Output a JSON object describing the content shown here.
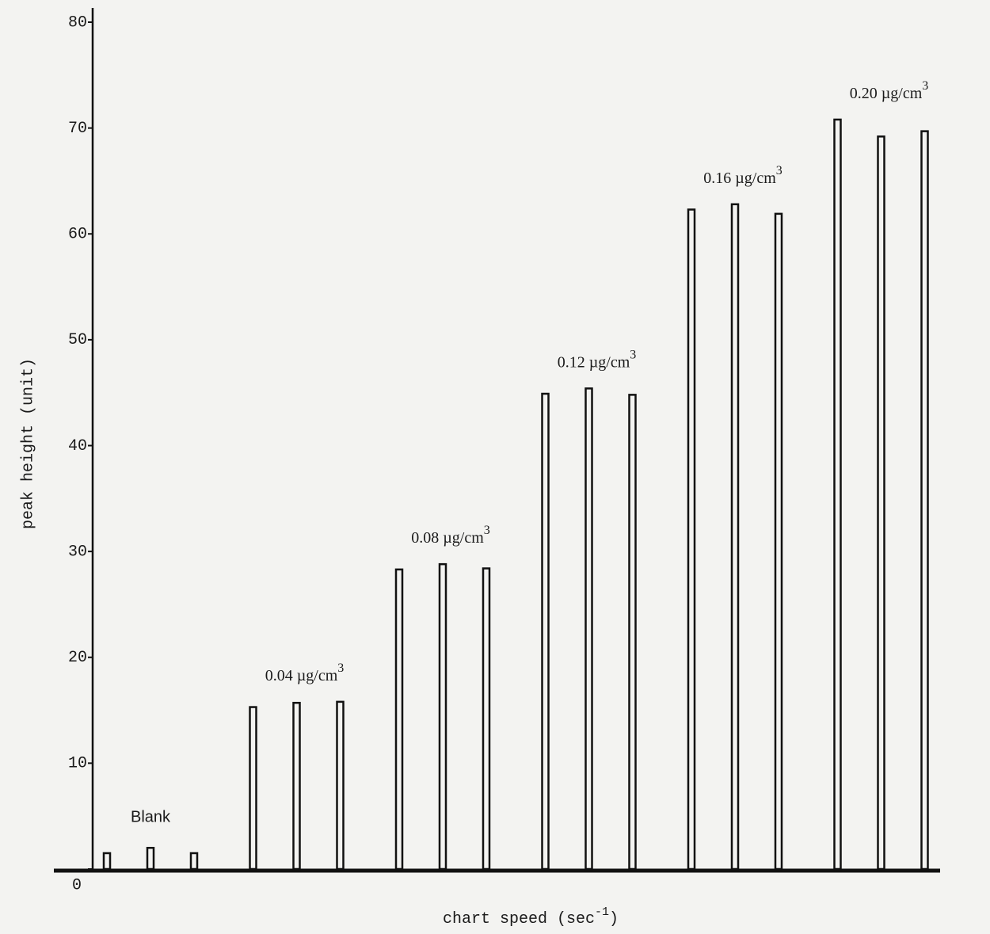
{
  "chart_data": {
    "type": "peak",
    "y_label": "peak height (unit)",
    "x_label": [
      "chart speed (sec",
      "-1",
      ")"
    ],
    "categories": [
      null,
      null,
      null,
      null,
      null,
      null,
      null,
      null,
      null,
      null,
      null,
      null,
      null,
      null,
      null,
      null,
      null,
      null
    ],
    "values": [
      1.5,
      2,
      1.5,
      15.3,
      15.7,
      15.8,
      28.3,
      28.8,
      28.4,
      44.9,
      45.4,
      44.8,
      62.3,
      62.8,
      61.9,
      70.8,
      69.2,
      69.7
    ],
    "color": "#111111",
    "annotations": [
      {
        "text": "Blank"
      },
      {
        "text": "0.04 µg/cm",
        "sup": "3"
      },
      {
        "text": "0.08 µg/cm",
        "sup": "3"
      },
      {
        "text": "0.12 µg/cm",
        "sup": "3"
      },
      {
        "text": "0.16 µg/cm",
        "sup": "3"
      },
      {
        "text": "0.20 µg/cm",
        "sup": "3"
      }
    ],
    "ylim": [
      0,
      80
    ],
    "yticks": [
      0,
      10,
      20,
      30,
      40,
      50,
      60,
      70,
      80
    ]
  }
}
